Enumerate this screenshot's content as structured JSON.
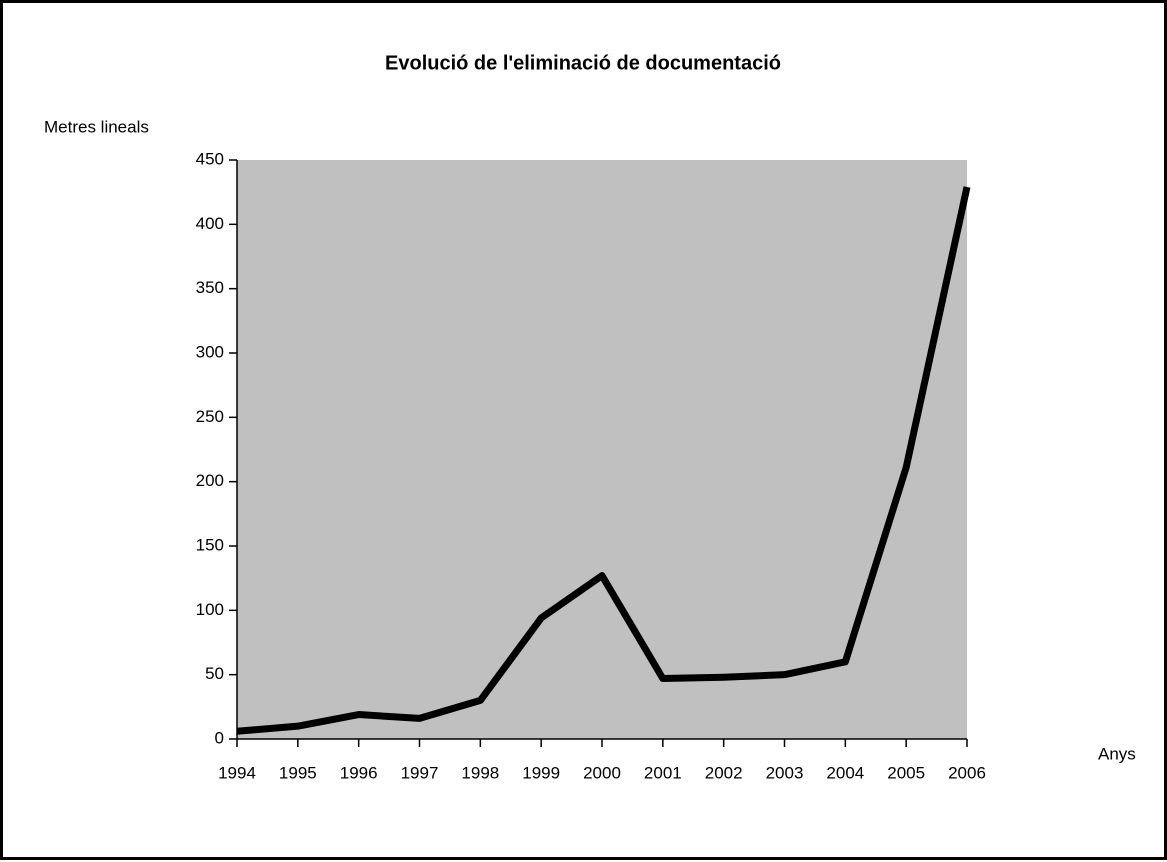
{
  "chart_data": {
    "type": "line",
    "title": "Evolució de l'eliminació de documentació",
    "y_label": "Metres lineals",
    "x_label": "Anys",
    "x": [
      1994,
      1995,
      1996,
      1997,
      1998,
      1999,
      2000,
      2001,
      2002,
      2003,
      2004,
      2005,
      2006
    ],
    "series": [
      {
        "name": "Metres lineals",
        "color": "#000000",
        "values": [
          6,
          10,
          19,
          16,
          30,
          94,
          127,
          47,
          48,
          50,
          60,
          211,
          429
        ]
      }
    ],
    "xlim": [
      1994,
      2006
    ],
    "xticks": [
      1994,
      1995,
      1996,
      1997,
      1998,
      1999,
      2000,
      2001,
      2002,
      2003,
      2004,
      2005,
      2006
    ],
    "ylim": [
      0,
      450
    ],
    "yticks": [
      0,
      50,
      100,
      150,
      200,
      250,
      300,
      350,
      400,
      450
    ],
    "plot_background": "#c0c0c0"
  }
}
